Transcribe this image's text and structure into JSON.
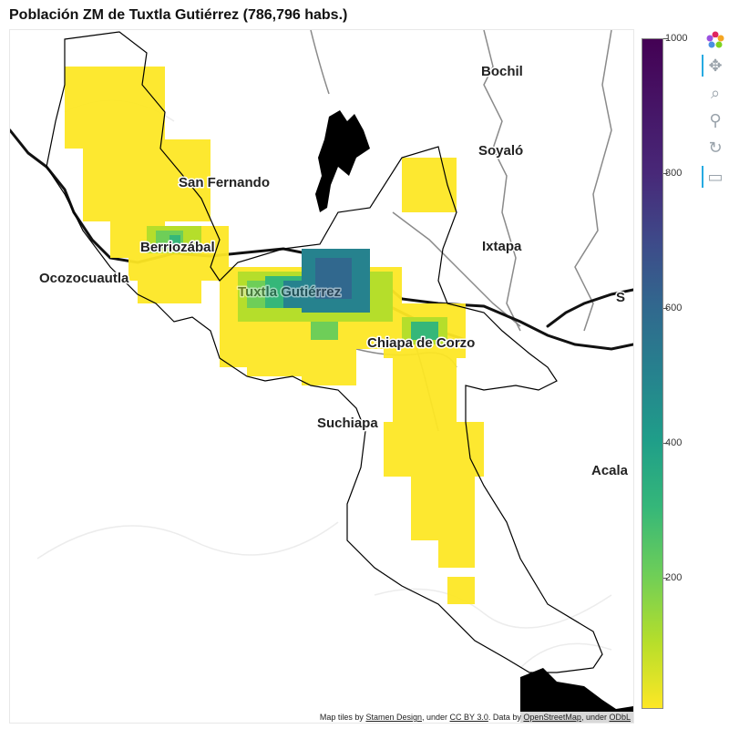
{
  "title": "Población ZM de Tuxtla Gutiérrez (786,796 habs.)",
  "place_labels": {
    "bochil": "Bochil",
    "san_fernando": "San Fernando",
    "soyalo": "Soyaló",
    "berriozabal": "Berriozábal",
    "ixtapa": "Ixtapa",
    "ocozocoautla": "Ocozocuautla",
    "tuxtla": "Tuxtla Gutiérrez",
    "chiapa": "Chiapa de Corzo",
    "suchiapa": "Suchiapa",
    "acala": "Acala",
    "edge_s": "S"
  },
  "colorbar": {
    "min": 0,
    "max": 1000,
    "tick_labels": [
      "1000",
      "800",
      "600",
      "400",
      "200"
    ],
    "palette": [
      "#fde725",
      "#b5de2b",
      "#6ece58",
      "#35b779",
      "#1f9e89",
      "#26828e",
      "#31688e",
      "#3e4989",
      "#482878",
      "#440154"
    ]
  },
  "colors": {
    "boundary": "#000000",
    "road": "#111111",
    "river": "#888888",
    "low_density": "#fde725"
  },
  "toolbar": {
    "logo": "bokeh-logo-icon",
    "pan": "pan-icon",
    "box_zoom": "box-zoom-icon",
    "wheel_zoom": "wheel-zoom-icon",
    "reset": "reset-icon",
    "hover": "hover-icon"
  },
  "attribution": {
    "prefix": "Map tiles by ",
    "tiles_link": "Stamen Design",
    "mid1": ", under ",
    "license1": "CC BY 3.0",
    "mid2": ". Data by ",
    "osm_link": "OpenStreetMap",
    "mid3": ", under ",
    "license2": "ODbL"
  }
}
